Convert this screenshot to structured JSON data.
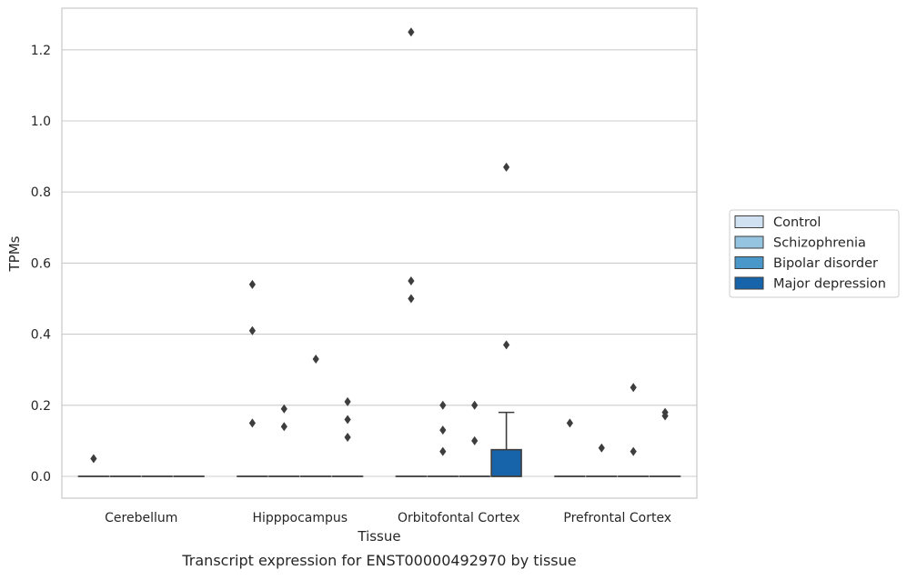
{
  "chart_data": {
    "type": "box",
    "title": "",
    "caption": "Transcript expression for ENST00000492970 by tissue",
    "xlabel": "Tissue",
    "ylabel": "TPMs",
    "ylim": [
      -0.06,
      1.32
    ],
    "yticks": [
      0.0,
      0.2,
      0.4,
      0.6,
      0.8,
      1.0,
      1.2
    ],
    "ytick_labels": [
      "0.0",
      "0.2",
      "0.4",
      "0.6",
      "0.8",
      "1.0",
      "1.2"
    ],
    "grid": "horizontal",
    "legend_position": "right",
    "categories": [
      "Cerebellum",
      "Hipppocampus",
      "Orbitofontal Cortex",
      "Prefrontal Cortex"
    ],
    "series": [
      {
        "name": "Control",
        "color": "#d0e1f2",
        "boxes": [
          {
            "q1": 0,
            "median": 0,
            "q3": 0,
            "whisker_low": 0,
            "whisker_high": 0,
            "outliers": [
              0.05
            ]
          },
          {
            "q1": 0,
            "median": 0,
            "q3": 0,
            "whisker_low": 0,
            "whisker_high": 0,
            "outliers": [
              0.54,
              0.41,
              0.15
            ]
          },
          {
            "q1": 0,
            "median": 0,
            "q3": 0,
            "whisker_low": 0,
            "whisker_high": 0,
            "outliers": [
              1.25,
              0.55,
              0.5
            ]
          },
          {
            "q1": 0,
            "median": 0,
            "q3": 0,
            "whisker_low": 0,
            "whisker_high": 0,
            "outliers": [
              0.15
            ]
          }
        ]
      },
      {
        "name": "Schizophrenia",
        "color": "#94c4df",
        "boxes": [
          {
            "q1": 0,
            "median": 0,
            "q3": 0,
            "whisker_low": 0,
            "whisker_high": 0,
            "outliers": []
          },
          {
            "q1": 0,
            "median": 0,
            "q3": 0,
            "whisker_low": 0,
            "whisker_high": 0,
            "outliers": [
              0.19,
              0.14
            ]
          },
          {
            "q1": 0,
            "median": 0,
            "q3": 0,
            "whisker_low": 0,
            "whisker_high": 0,
            "outliers": [
              0.2,
              0.13,
              0.07
            ]
          },
          {
            "q1": 0,
            "median": 0,
            "q3": 0,
            "whisker_low": 0,
            "whisker_high": 0,
            "outliers": [
              0.08
            ]
          }
        ]
      },
      {
        "name": "Bipolar disorder",
        "color": "#4a98c9",
        "boxes": [
          {
            "q1": 0,
            "median": 0,
            "q3": 0,
            "whisker_low": 0,
            "whisker_high": 0,
            "outliers": []
          },
          {
            "q1": 0,
            "median": 0,
            "q3": 0,
            "whisker_low": 0,
            "whisker_high": 0,
            "outliers": [
              0.33
            ]
          },
          {
            "q1": 0,
            "median": 0,
            "q3": 0,
            "whisker_low": 0,
            "whisker_high": 0,
            "outliers": [
              0.2,
              0.1
            ]
          },
          {
            "q1": 0,
            "median": 0,
            "q3": 0,
            "whisker_low": 0,
            "whisker_high": 0,
            "outliers": [
              0.25,
              0.07
            ]
          }
        ]
      },
      {
        "name": "Major depression",
        "color": "#1764ab",
        "boxes": [
          {
            "q1": 0,
            "median": 0,
            "q3": 0,
            "whisker_low": 0,
            "whisker_high": 0,
            "outliers": []
          },
          {
            "q1": 0,
            "median": 0,
            "q3": 0,
            "whisker_low": 0,
            "whisker_high": 0,
            "outliers": [
              0.21,
              0.16,
              0.11
            ]
          },
          {
            "q1": 0,
            "median": 0,
            "q3": 0.075,
            "whisker_low": 0,
            "whisker_high": 0.18,
            "outliers": [
              0.87,
              0.37
            ]
          },
          {
            "q1": 0,
            "median": 0,
            "q3": 0,
            "whisker_low": 0,
            "whisker_high": 0,
            "outliers": [
              0.18,
              0.17
            ]
          }
        ]
      }
    ]
  }
}
